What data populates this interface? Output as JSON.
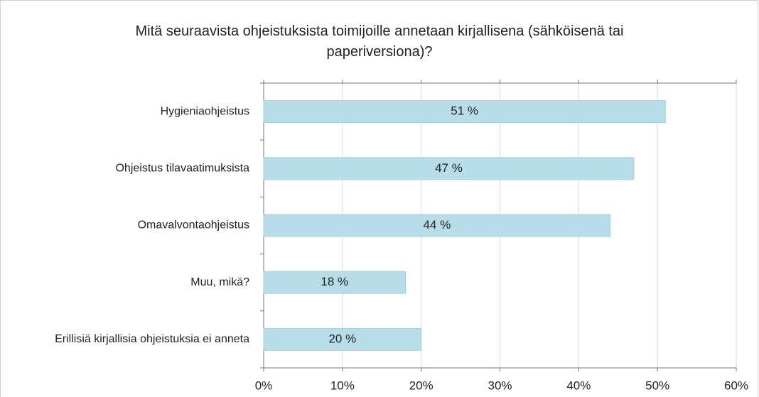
{
  "chart_data": {
    "type": "hbar",
    "title": "Mitä seuraavista ohjeistuksista toimijoille annetaan kirjallisena (sähköisenä tai paperiversiona)?",
    "categories": [
      "Hygieniaohjeistus",
      "Ohjeistus tilavaatimuksista",
      "Omavalvontaohjeistus",
      "Muu, mikä?",
      "Erillisiä kirjallisia ohjeistuksia ei anneta"
    ],
    "values": [
      51,
      47,
      44,
      18,
      20
    ],
    "value_labels": [
      "51 %",
      "47 %",
      "44 %",
      "18 %",
      "20 %"
    ],
    "color": "#b7dde8",
    "xlim": [
      0,
      60
    ],
    "xticks": [
      {
        "value": 0,
        "label": "0%"
      },
      {
        "value": 10,
        "label": "10%"
      },
      {
        "value": 20,
        "label": "20%"
      },
      {
        "value": 30,
        "label": "30%"
      },
      {
        "value": 40,
        "label": "40%"
      },
      {
        "value": 50,
        "label": "50%"
      },
      {
        "value": 60,
        "label": "60%"
      }
    ],
    "grid": true
  }
}
